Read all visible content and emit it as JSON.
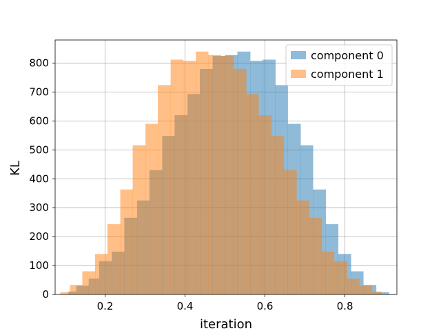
{
  "chart_data": {
    "type": "bar",
    "title": "",
    "xlabel": "iteration",
    "ylabel": "KL",
    "xlim": [
      0.075,
      0.93
    ],
    "ylim": [
      0,
      880
    ],
    "xticks": [
      0.2,
      0.4,
      0.6,
      0.8
    ],
    "yticks": [
      0,
      100,
      200,
      300,
      400,
      500,
      600,
      700,
      800
    ],
    "grid": true,
    "legend_position": "top-right",
    "series": [
      {
        "name": "component 0",
        "color": "#1f77b4",
        "opacity": 0.5,
        "bins": [
          {
            "x0": 0.108,
            "x1": 0.128,
            "value": 10
          },
          {
            "x0": 0.128,
            "x1": 0.159,
            "value": 30
          },
          {
            "x0": 0.159,
            "x1": 0.185,
            "value": 55
          },
          {
            "x0": 0.185,
            "x1": 0.217,
            "value": 115
          },
          {
            "x0": 0.217,
            "x1": 0.248,
            "value": 148
          },
          {
            "x0": 0.248,
            "x1": 0.28,
            "value": 265
          },
          {
            "x0": 0.28,
            "x1": 0.311,
            "value": 325
          },
          {
            "x0": 0.311,
            "x1": 0.343,
            "value": 430
          },
          {
            "x0": 0.343,
            "x1": 0.374,
            "value": 548
          },
          {
            "x0": 0.374,
            "x1": 0.406,
            "value": 620
          },
          {
            "x0": 0.406,
            "x1": 0.437,
            "value": 693
          },
          {
            "x0": 0.437,
            "x1": 0.469,
            "value": 780
          },
          {
            "x0": 0.469,
            "x1": 0.5,
            "value": 825
          },
          {
            "x0": 0.5,
            "x1": 0.531,
            "value": 828
          },
          {
            "x0": 0.531,
            "x1": 0.563,
            "value": 840
          },
          {
            "x0": 0.563,
            "x1": 0.594,
            "value": 808
          },
          {
            "x0": 0.594,
            "x1": 0.626,
            "value": 812
          },
          {
            "x0": 0.626,
            "x1": 0.657,
            "value": 724
          },
          {
            "x0": 0.657,
            "x1": 0.689,
            "value": 590
          },
          {
            "x0": 0.689,
            "x1": 0.72,
            "value": 516
          },
          {
            "x0": 0.72,
            "x1": 0.752,
            "value": 363
          },
          {
            "x0": 0.752,
            "x1": 0.783,
            "value": 243
          },
          {
            "x0": 0.783,
            "x1": 0.815,
            "value": 140
          },
          {
            "x0": 0.815,
            "x1": 0.846,
            "value": 80
          },
          {
            "x0": 0.846,
            "x1": 0.878,
            "value": 33
          },
          {
            "x0": 0.878,
            "x1": 0.91,
            "value": 8
          }
        ]
      },
      {
        "name": "component 1",
        "color": "#ff7f0e",
        "opacity": 0.5,
        "bins": [
          {
            "x0": 0.088,
            "x1": 0.112,
            "value": 8
          },
          {
            "x0": 0.112,
            "x1": 0.143,
            "value": 33
          },
          {
            "x0": 0.143,
            "x1": 0.175,
            "value": 80
          },
          {
            "x0": 0.175,
            "x1": 0.206,
            "value": 140
          },
          {
            "x0": 0.206,
            "x1": 0.238,
            "value": 243
          },
          {
            "x0": 0.238,
            "x1": 0.269,
            "value": 363
          },
          {
            "x0": 0.269,
            "x1": 0.301,
            "value": 516
          },
          {
            "x0": 0.301,
            "x1": 0.332,
            "value": 590
          },
          {
            "x0": 0.332,
            "x1": 0.364,
            "value": 724
          },
          {
            "x0": 0.364,
            "x1": 0.395,
            "value": 812
          },
          {
            "x0": 0.395,
            "x1": 0.427,
            "value": 808
          },
          {
            "x0": 0.427,
            "x1": 0.458,
            "value": 840
          },
          {
            "x0": 0.458,
            "x1": 0.49,
            "value": 828
          },
          {
            "x0": 0.49,
            "x1": 0.521,
            "value": 825
          },
          {
            "x0": 0.521,
            "x1": 0.553,
            "value": 780
          },
          {
            "x0": 0.553,
            "x1": 0.584,
            "value": 693
          },
          {
            "x0": 0.584,
            "x1": 0.616,
            "value": 620
          },
          {
            "x0": 0.616,
            "x1": 0.647,
            "value": 548
          },
          {
            "x0": 0.647,
            "x1": 0.679,
            "value": 430
          },
          {
            "x0": 0.679,
            "x1": 0.71,
            "value": 325
          },
          {
            "x0": 0.71,
            "x1": 0.742,
            "value": 265
          },
          {
            "x0": 0.742,
            "x1": 0.773,
            "value": 148
          },
          {
            "x0": 0.773,
            "x1": 0.805,
            "value": 115
          },
          {
            "x0": 0.805,
            "x1": 0.836,
            "value": 55
          },
          {
            "x0": 0.836,
            "x1": 0.868,
            "value": 30
          },
          {
            "x0": 0.868,
            "x1": 0.892,
            "value": 10
          }
        ]
      }
    ]
  }
}
